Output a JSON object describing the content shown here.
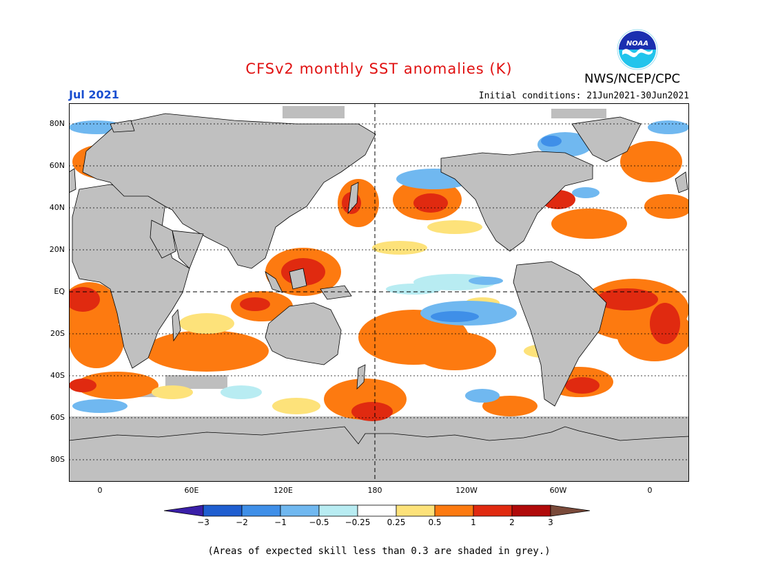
{
  "title": "CFSv2 monthly SST anomalies (K)",
  "month": "Jul 2021",
  "initial_conditions": "Initial conditions: 21Jun2021-30Jun2021",
  "organization": "NWS/NCEP/CPC",
  "logo_text": "NOAA",
  "lat_labels": [
    "80N",
    "60N",
    "40N",
    "20N",
    "EQ",
    "20S",
    "40S",
    "60S",
    "80S"
  ],
  "lon_labels": [
    "0",
    "60E",
    "120E",
    "180",
    "120W",
    "60W",
    "0"
  ],
  "colorbar": {
    "labels": [
      "−3",
      "−2",
      "−1",
      "−0.5",
      "−0.25",
      "0.25",
      "0.5",
      "1",
      "2",
      "3"
    ],
    "colors": [
      "#3a1fa8",
      "#1f5ed0",
      "#3f8fe8",
      "#70b8f0",
      "#b8ecf2",
      "#ffffff",
      "#fde27a",
      "#fd7a10",
      "#e02a10",
      "#b00a0a",
      "#7a4a3a"
    ]
  },
  "note": "(Areas of expected skill less than 0.3 are shaded in grey.)",
  "colors": {
    "land": "#c0c0c0",
    "low_skill": "#bebebe",
    "title": "#e01010",
    "month": "#1a4fd0"
  }
}
